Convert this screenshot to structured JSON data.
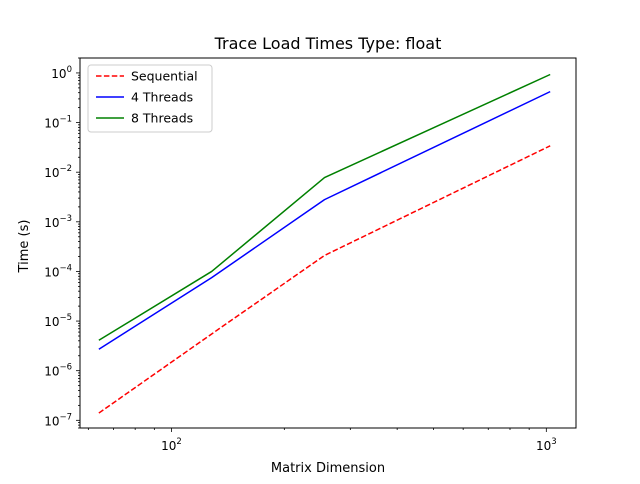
{
  "chart_data": {
    "type": "line",
    "title": "Trace Load Times Type: float",
    "xlabel": "Matrix Dimension",
    "ylabel": "Time (s)",
    "x_scale": "log",
    "y_scale": "log",
    "xlim": [
      57,
      1200
    ],
    "ylim": [
      7e-08,
      2.0
    ],
    "grid": false,
    "legend_position": "top-left",
    "x_ticks": [
      {
        "value": 100,
        "base": "10",
        "exp": "2"
      },
      {
        "value": 1000,
        "base": "10",
        "exp": "3"
      }
    ],
    "y_ticks": [
      {
        "value": 1e-07,
        "base": "10",
        "exp": "−7"
      },
      {
        "value": 1e-06,
        "base": "10",
        "exp": "−6"
      },
      {
        "value": 1e-05,
        "base": "10",
        "exp": "−5"
      },
      {
        "value": 0.0001,
        "base": "10",
        "exp": "−4"
      },
      {
        "value": 0.001,
        "base": "10",
        "exp": "−3"
      },
      {
        "value": 0.01,
        "base": "10",
        "exp": "−2"
      },
      {
        "value": 0.1,
        "base": "10",
        "exp": "−1"
      },
      {
        "value": 1,
        "base": "10",
        "exp": "0"
      }
    ],
    "x": [
      64,
      128,
      256,
      1024
    ],
    "series": [
      {
        "name": "Sequential",
        "values": [
          1.4e-07,
          5.5e-06,
          0.00021,
          0.034
        ],
        "color": "#ff0000",
        "dashed": true
      },
      {
        "name": "4 Threads",
        "values": [
          2.7e-06,
          7.5e-05,
          0.0028,
          0.42
        ],
        "color": "#0000ff",
        "dashed": false
      },
      {
        "name": "8 Threads",
        "values": [
          4.1e-06,
          0.0001,
          0.0078,
          0.93
        ],
        "color": "#008000",
        "dashed": false
      }
    ]
  }
}
